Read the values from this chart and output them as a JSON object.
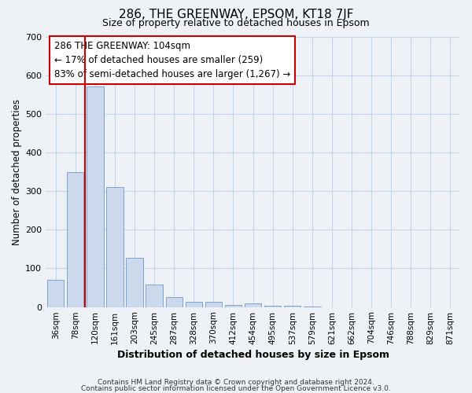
{
  "title": "286, THE GREENWAY, EPSOM, KT18 7JF",
  "subtitle": "Size of property relative to detached houses in Epsom",
  "xlabel": "Distribution of detached houses by size in Epsom",
  "ylabel": "Number of detached properties",
  "bar_labels": [
    "36sqm",
    "78sqm",
    "120sqm",
    "161sqm",
    "203sqm",
    "245sqm",
    "287sqm",
    "328sqm",
    "370sqm",
    "412sqm",
    "454sqm",
    "495sqm",
    "537sqm",
    "579sqm",
    "621sqm",
    "662sqm",
    "704sqm",
    "746sqm",
    "788sqm",
    "829sqm",
    "871sqm"
  ],
  "bar_values": [
    70,
    350,
    570,
    310,
    127,
    58,
    26,
    14,
    14,
    6,
    10,
    4,
    4,
    2,
    0,
    0,
    0,
    0,
    0,
    0,
    0
  ],
  "bar_color": "#ccd9ec",
  "bar_edge_color": "#7ba3cc",
  "vline_color": "#cc0000",
  "ylim": [
    0,
    700
  ],
  "yticks": [
    0,
    100,
    200,
    300,
    400,
    500,
    600,
    700
  ],
  "annotation_line1": "286 THE GREENWAY: 104sqm",
  "annotation_line2": "← 17% of detached houses are smaller (259)",
  "annotation_line3": "83% of semi-detached houses are larger (1,267) →",
  "annotation_box_color": "#ffffff",
  "annotation_box_edge": "#cc0000",
  "footer_line1": "Contains HM Land Registry data © Crown copyright and database right 2024.",
  "footer_line2": "Contains public sector information licensed under the Open Government Licence v3.0.",
  "grid_color": "#c5d5e8",
  "background_color": "#eef2f7",
  "title_fontsize": 11,
  "subtitle_fontsize": 9,
  "ylabel_fontsize": 8.5,
  "xlabel_fontsize": 9,
  "tick_fontsize": 7.5,
  "ytick_fontsize": 8,
  "annot_fontsize": 8.5,
  "footer_fontsize": 6.5
}
